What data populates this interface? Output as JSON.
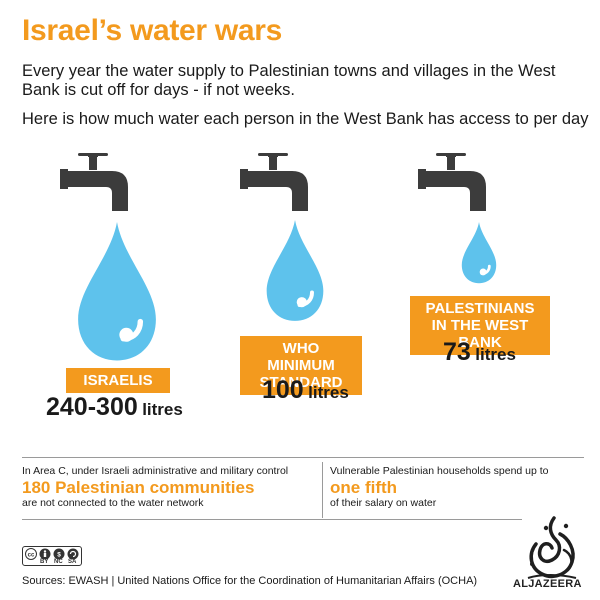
{
  "header": {
    "title": "Israel’s water wars",
    "subtitle": "Every year the water supply to Palestinian towns and villages in the West Bank is cut off for days - if not weeks.",
    "subtitle2": "Here is how much water each person in the West Bank has access to per day"
  },
  "groups": [
    {
      "label": "ISRAELIS",
      "value": "240-300",
      "unit": "litres",
      "icon": "water-tap-icon",
      "drop_icon": "water-drop-icon"
    },
    {
      "label": "WHO MINIMUM STANDARD",
      "value": "100",
      "unit": "litres",
      "icon": "water-tap-icon",
      "drop_icon": "water-drop-icon"
    },
    {
      "label": "PALESTINIANS IN THE WEST BANK",
      "value": "73",
      "unit": "litres",
      "icon": "water-tap-icon",
      "drop_icon": "water-drop-icon"
    }
  ],
  "facts": {
    "left_intro": "In Area C, under Israeli administrative and military control",
    "left_highlight": "180 Palestinian communities",
    "left_outro": "are not connected to the water network",
    "right_intro": "Vulnerable Palestinian households spend up to",
    "right_highlight": "one fifth",
    "right_outro": "of their salary on water"
  },
  "footer": {
    "license_icon": "creative-commons-by-nc-sa-icon",
    "license_labels": [
      "BY",
      "NC",
      "SA"
    ],
    "sources": "Sources: EWASH  |  United Nations Office for the Coordination of Humanitarian Affairs (OCHA)",
    "logo_icon": "al-jazeera-logo-icon",
    "logo_text": "ALJAZEERA"
  },
  "colors": {
    "accent": "#f39a1e",
    "water": "#5ec2ec",
    "tap": "#3c3c3c",
    "text": "#1a1a1a"
  }
}
